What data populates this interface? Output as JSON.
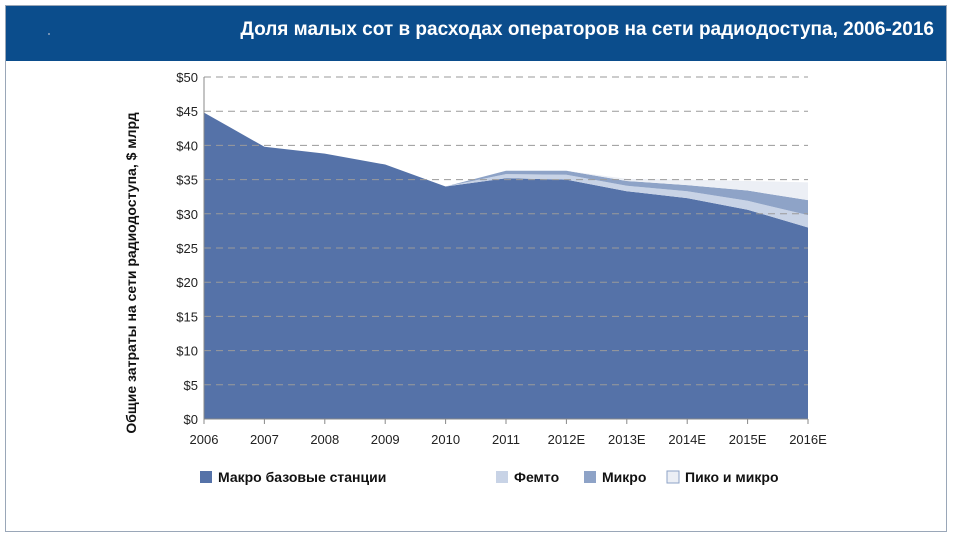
{
  "title": "Доля малых сот в расходах операторов на сети радиодоступа, 2006-2016",
  "chart_data": {
    "type": "area",
    "title": "Доля малых сот в расходах операторов на сети радиодоступа, 2006-2016",
    "xlabel": "",
    "ylabel": "Общие затраты на сети радиодоступа, $ млрд",
    "categories": [
      "2006",
      "2007",
      "2008",
      "2009",
      "2010",
      "2011",
      "2012E",
      "2013E",
      "2014E",
      "2015E",
      "2016E"
    ],
    "ylim": [
      0,
      50
    ],
    "yticks": [
      "$0",
      "$5",
      "$10",
      "$15",
      "$20",
      "$25",
      "$30",
      "$35",
      "$40",
      "$45",
      "$50"
    ],
    "stacked": true,
    "grid": "dashed-horizontal",
    "legend_position": "bottom",
    "series": [
      {
        "name": "Макро базовые станции",
        "color": "#5572a8",
        "values": [
          44.8,
          39.8,
          38.8,
          37.2,
          34.0,
          35.2,
          35.0,
          33.3,
          32.3,
          30.6,
          28.0
        ]
      },
      {
        "name": "Фемто",
        "color": "#c8d3e6",
        "values": [
          0,
          0,
          0,
          0,
          0,
          0.6,
          0.7,
          0.8,
          1.0,
          1.3,
          1.8
        ]
      },
      {
        "name": "Микро",
        "color": "#8ea3c7",
        "values": [
          0,
          0,
          0,
          0,
          0,
          0.5,
          0.6,
          0.7,
          0.9,
          1.5,
          2.2
        ]
      },
      {
        "name": "Пико и микро",
        "color": "#eceff5",
        "values": [
          0,
          0,
          0,
          0,
          0,
          0,
          0,
          0.3,
          0.8,
          1.4,
          2.6
        ]
      }
    ]
  }
}
